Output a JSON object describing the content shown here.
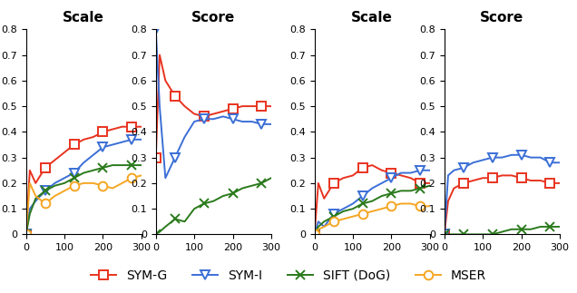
{
  "chart_data": [
    {
      "type": "line",
      "title": "Scale",
      "xlim": [
        0,
        300
      ],
      "xticks": [
        0,
        100,
        200,
        300
      ],
      "ylim": [
        0,
        0.8
      ],
      "yticks": [
        0,
        0.1,
        0.2,
        0.3,
        0.4,
        0.5,
        0.6,
        0.7,
        0.8
      ],
      "legend": "lower center",
      "x": [
        0,
        10,
        25,
        50,
        75,
        100,
        125,
        150,
        175,
        200,
        225,
        250,
        275,
        300
      ],
      "series": [
        {
          "name": "SYM-G",
          "color": "#e8331f",
          "marker": "square",
          "values": [
            0,
            0.25,
            0.2,
            0.26,
            0.29,
            0.32,
            0.35,
            0.37,
            0.38,
            0.4,
            0.41,
            0.42,
            0.42,
            0.42
          ]
        },
        {
          "name": "SYM-I",
          "color": "#3b6fd6",
          "marker": "triangle_down",
          "values": [
            0,
            0.1,
            0.13,
            0.17,
            0.2,
            0.22,
            0.24,
            0.28,
            0.31,
            0.34,
            0.35,
            0.36,
            0.37,
            0.37
          ]
        },
        {
          "name": "SIFT (DoG)",
          "color": "#2a7a1c",
          "marker": "x",
          "values": [
            0,
            0.08,
            0.14,
            0.17,
            0.19,
            0.2,
            0.22,
            0.24,
            0.25,
            0.26,
            0.27,
            0.27,
            0.27,
            0.27
          ]
        },
        {
          "name": "MSER",
          "color": "#f5a623",
          "marker": "circle",
          "values": [
            0,
            0.2,
            0.15,
            0.12,
            0.15,
            0.17,
            0.19,
            0.2,
            0.2,
            0.19,
            0.18,
            0.2,
            0.22,
            0.23
          ]
        }
      ]
    },
    {
      "type": "line",
      "title": "Score",
      "xlim": [
        0,
        300
      ],
      "xticks": [
        0,
        100,
        200,
        300
      ],
      "ylim": [
        0,
        0.8
      ],
      "yticks": [
        0,
        0.1,
        0.2,
        0.3,
        0.4,
        0.5,
        0.6,
        0.7,
        0.8
      ],
      "x": [
        0,
        10,
        25,
        50,
        75,
        100,
        125,
        150,
        175,
        200,
        225,
        250,
        275,
        300
      ],
      "series": [
        {
          "name": "SYM-G",
          "color": "#e8331f",
          "marker": "square",
          "values": [
            0.3,
            0.7,
            0.6,
            0.54,
            0.5,
            0.47,
            0.46,
            0.47,
            0.48,
            0.49,
            0.5,
            0.5,
            0.5,
            0.5
          ]
        },
        {
          "name": "SYM-I",
          "color": "#3b6fd6",
          "marker": "triangle_down",
          "values": [
            0.8,
            0.5,
            0.22,
            0.3,
            0.38,
            0.44,
            0.45,
            0.45,
            0.46,
            0.45,
            0.44,
            0.44,
            0.43,
            0.43
          ]
        },
        {
          "name": "SIFT (DoG)",
          "color": "#2a7a1c",
          "marker": "x",
          "values": [
            0,
            0.01,
            0.03,
            0.06,
            0.05,
            0.1,
            0.12,
            0.13,
            0.15,
            0.16,
            0.18,
            0.19,
            0.2,
            0.22
          ]
        }
      ]
    },
    {
      "type": "line",
      "title": "Scale",
      "xlim": [
        0,
        300
      ],
      "xticks": [
        0,
        100,
        200,
        300
      ],
      "ylim": [
        0,
        0.8
      ],
      "yticks": [
        0,
        0.1,
        0.2,
        0.3,
        0.4,
        0.5,
        0.6,
        0.7,
        0.8
      ],
      "x": [
        0,
        10,
        25,
        50,
        75,
        100,
        125,
        150,
        175,
        200,
        225,
        250,
        275,
        300
      ],
      "series": [
        {
          "name": "SYM-G",
          "color": "#e8331f",
          "marker": "square",
          "values": [
            0,
            0.2,
            0.14,
            0.2,
            0.22,
            0.23,
            0.26,
            0.27,
            0.25,
            0.24,
            0.23,
            0.22,
            0.2,
            0.2
          ]
        },
        {
          "name": "SYM-I",
          "color": "#3b6fd6",
          "marker": "triangle_down",
          "values": [
            0,
            0.05,
            0.03,
            0.08,
            0.1,
            0.12,
            0.15,
            0.18,
            0.2,
            0.22,
            0.24,
            0.24,
            0.25,
            0.25
          ]
        },
        {
          "name": "SIFT (DoG)",
          "color": "#2a7a1c",
          "marker": "x",
          "values": [
            0,
            0.03,
            0.05,
            0.07,
            0.09,
            0.1,
            0.12,
            0.13,
            0.15,
            0.16,
            0.17,
            0.17,
            0.18,
            0.19
          ]
        },
        {
          "name": "MSER",
          "color": "#f5a623",
          "marker": "circle",
          "values": [
            0,
            0.02,
            0.03,
            0.05,
            0.06,
            0.07,
            0.08,
            0.09,
            0.1,
            0.11,
            0.12,
            0.12,
            0.11,
            0.11
          ]
        }
      ]
    },
    {
      "type": "line",
      "title": "Score",
      "xlim": [
        0,
        300
      ],
      "xticks": [
        0,
        100,
        200,
        300
      ],
      "ylim": [
        0,
        0.8
      ],
      "yticks": [
        0,
        0.1,
        0.2,
        0.3,
        0.4,
        0.5,
        0.6,
        0.7,
        0.8
      ],
      "x": [
        0,
        10,
        25,
        50,
        75,
        100,
        125,
        150,
        175,
        200,
        225,
        250,
        275,
        300
      ],
      "series": [
        {
          "name": "SYM-G",
          "color": "#e8331f",
          "marker": "square",
          "values": [
            0,
            0.13,
            0.18,
            0.2,
            0.21,
            0.22,
            0.22,
            0.23,
            0.23,
            0.22,
            0.21,
            0.21,
            0.2,
            0.2
          ]
        },
        {
          "name": "SYM-I",
          "color": "#3b6fd6",
          "marker": "triangle_down",
          "values": [
            0,
            0.23,
            0.25,
            0.26,
            0.28,
            0.29,
            0.3,
            0.3,
            0.31,
            0.31,
            0.3,
            0.3,
            0.28,
            0.28
          ]
        },
        {
          "name": "SIFT (DoG)",
          "color": "#2a7a1c",
          "marker": "x",
          "values": [
            0,
            0,
            0,
            0,
            0,
            0,
            0,
            0.01,
            0.02,
            0.02,
            0.02,
            0.03,
            0.03,
            0.03
          ]
        }
      ]
    }
  ]
}
